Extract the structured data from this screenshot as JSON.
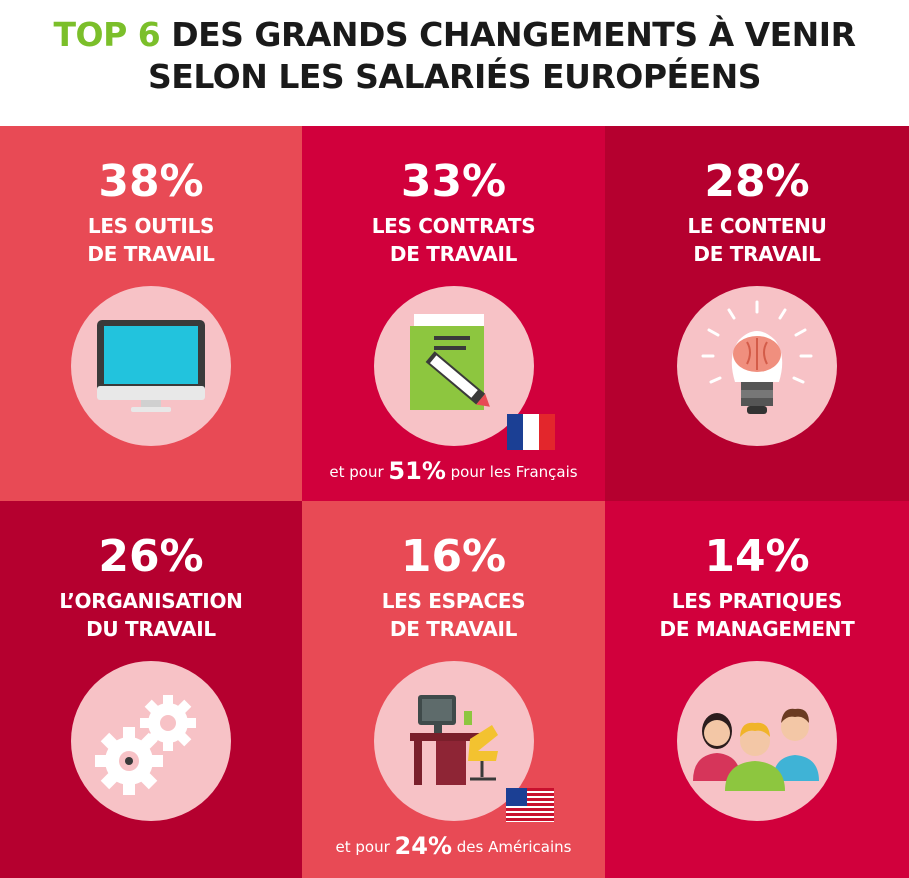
{
  "title": {
    "line1_accent": "TOP 6",
    "line1_rest": " DES GRANDS CHANGEMENTS À VENIR",
    "line2": "SELON LES SALARIÉS EUROPÉENS"
  },
  "colors": {
    "accent": "#7bbf2a",
    "tile_light": "#e84a55",
    "tile_mid": "#d1003c",
    "tile_dark": "#b5002f",
    "circle": "#f7c2c6"
  },
  "chart_data": {
    "type": "table",
    "unit": "%",
    "items": [
      {
        "value": 38,
        "value_label": "38%",
        "label_lines": [
          "LES OUTILS",
          "DE TRAVAIL"
        ],
        "icon": "computer-monitor-icon"
      },
      {
        "value": 33,
        "value_label": "33%",
        "label_lines": [
          "LES CONTRATS",
          "DE TRAVAIL"
        ],
        "icon": "contract-document-icon",
        "note": {
          "prefix": "et pour ",
          "value": "51%",
          "suffix": " pour les Français",
          "flag": "france-flag-icon"
        }
      },
      {
        "value": 28,
        "value_label": "28%",
        "label_lines": [
          "LE CONTENU",
          "DE TRAVAIL"
        ],
        "icon": "brain-lightbulb-icon"
      },
      {
        "value": 26,
        "value_label": "26%",
        "label_lines": [
          "L’ORGANISATION",
          "DU TRAVAIL"
        ],
        "icon": "gears-icon"
      },
      {
        "value": 16,
        "value_label": "16%",
        "label_lines": [
          "LES ESPACES",
          "DE TRAVAIL"
        ],
        "icon": "office-desk-icon",
        "note": {
          "prefix": "et pour ",
          "value": "24%",
          "suffix": " des Américains",
          "flag": "usa-flag-icon"
        }
      },
      {
        "value": 14,
        "value_label": "14%",
        "label_lines": [
          "LES PRATIQUES",
          "DE MANAGEMENT"
        ],
        "icon": "team-people-icon"
      }
    ]
  }
}
